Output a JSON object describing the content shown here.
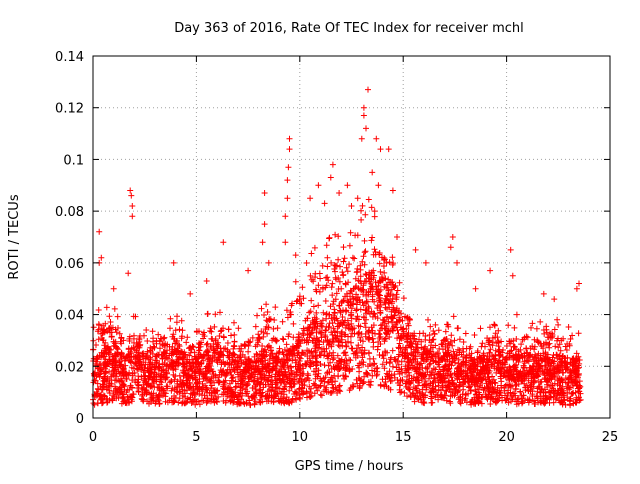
{
  "chart_data": {
    "type": "scatter",
    "title": "Day 363 of 2016, Rate Of TEC Index for receiver mchl",
    "xlabel": "GPS time / hours",
    "ylabel": "ROTI / TECUs",
    "xlim": [
      0,
      25
    ],
    "ylim": [
      0,
      0.14
    ],
    "x_ticks": [
      0,
      5,
      10,
      15,
      20,
      25
    ],
    "y_ticks": [
      0,
      0.02,
      0.04,
      0.06,
      0.08,
      0.1,
      0.12,
      0.14
    ],
    "x_tick_labels": [
      "0",
      "5",
      "10",
      "15",
      "20",
      "25"
    ],
    "y_tick_labels": [
      "0",
      "0.02",
      "0.04",
      "0.06",
      "0.08",
      "0.1",
      "0.12",
      "0.14"
    ],
    "grid": true,
    "marker": "+",
    "marker_color": "#ff0000",
    "data_x_range": [
      0,
      23.6
    ],
    "series": [
      {
        "name": "ROTI",
        "envelope": {
          "hours": [
            0,
            0.5,
            1,
            1.5,
            2,
            2.5,
            3,
            3.5,
            4,
            4.5,
            5,
            5.5,
            6,
            6.5,
            7,
            7.5,
            8,
            8.5,
            9,
            9.5,
            10,
            10.5,
            11,
            11.5,
            12,
            12.5,
            13,
            13.5,
            14,
            14.5,
            15,
            15.5,
            16,
            16.5,
            17,
            17.5,
            18,
            18.5,
            19,
            19.5,
            20,
            20.5,
            21,
            21.5,
            22,
            22.5,
            23,
            23.5
          ],
          "median": [
            0.014,
            0.016,
            0.018,
            0.015,
            0.018,
            0.016,
            0.015,
            0.016,
            0.017,
            0.015,
            0.014,
            0.016,
            0.017,
            0.016,
            0.015,
            0.014,
            0.015,
            0.017,
            0.016,
            0.016,
            0.019,
            0.022,
            0.024,
            0.025,
            0.028,
            0.03,
            0.033,
            0.036,
            0.034,
            0.03,
            0.024,
            0.018,
            0.016,
            0.016,
            0.015,
            0.016,
            0.015,
            0.014,
            0.015,
            0.016,
            0.015,
            0.015,
            0.016,
            0.015,
            0.016,
            0.015,
            0.014,
            0.014
          ],
          "upper": [
            0.035,
            0.038,
            0.036,
            0.03,
            0.034,
            0.03,
            0.03,
            0.032,
            0.035,
            0.03,
            0.028,
            0.034,
            0.036,
            0.034,
            0.03,
            0.028,
            0.034,
            0.04,
            0.036,
            0.04,
            0.05,
            0.055,
            0.058,
            0.06,
            0.06,
            0.062,
            0.07,
            0.072,
            0.065,
            0.06,
            0.045,
            0.035,
            0.032,
            0.034,
            0.03,
            0.034,
            0.03,
            0.028,
            0.03,
            0.032,
            0.03,
            0.03,
            0.032,
            0.03,
            0.034,
            0.032,
            0.03,
            0.03
          ]
        },
        "notable_points": [
          {
            "x": 0.3,
            "y": 0.072
          },
          {
            "x": 0.3,
            "y": 0.06
          },
          {
            "x": 0.4,
            "y": 0.062
          },
          {
            "x": 1.0,
            "y": 0.05
          },
          {
            "x": 1.8,
            "y": 0.088
          },
          {
            "x": 1.85,
            "y": 0.086
          },
          {
            "x": 1.9,
            "y": 0.082
          },
          {
            "x": 1.9,
            "y": 0.078
          },
          {
            "x": 1.7,
            "y": 0.056
          },
          {
            "x": 3.9,
            "y": 0.06
          },
          {
            "x": 4.7,
            "y": 0.048
          },
          {
            "x": 5.5,
            "y": 0.053
          },
          {
            "x": 6.3,
            "y": 0.068
          },
          {
            "x": 7.5,
            "y": 0.057
          },
          {
            "x": 8.3,
            "y": 0.087
          },
          {
            "x": 8.3,
            "y": 0.075
          },
          {
            "x": 8.2,
            "y": 0.068
          },
          {
            "x": 8.5,
            "y": 0.06
          },
          {
            "x": 9.5,
            "y": 0.108
          },
          {
            "x": 9.5,
            "y": 0.104
          },
          {
            "x": 9.45,
            "y": 0.097
          },
          {
            "x": 9.4,
            "y": 0.092
          },
          {
            "x": 9.4,
            "y": 0.085
          },
          {
            "x": 9.3,
            "y": 0.078
          },
          {
            "x": 9.3,
            "y": 0.068
          },
          {
            "x": 9.8,
            "y": 0.063
          },
          {
            "x": 10.5,
            "y": 0.085
          },
          {
            "x": 10.9,
            "y": 0.09
          },
          {
            "x": 11.2,
            "y": 0.083
          },
          {
            "x": 11.6,
            "y": 0.098
          },
          {
            "x": 11.5,
            "y": 0.093
          },
          {
            "x": 11.9,
            "y": 0.087
          },
          {
            "x": 12.3,
            "y": 0.09
          },
          {
            "x": 12.5,
            "y": 0.082
          },
          {
            "x": 12.8,
            "y": 0.085
          },
          {
            "x": 13.1,
            "y": 0.12
          },
          {
            "x": 13.1,
            "y": 0.117
          },
          {
            "x": 13.2,
            "y": 0.112
          },
          {
            "x": 13.0,
            "y": 0.108
          },
          {
            "x": 13.3,
            "y": 0.127
          },
          {
            "x": 13.5,
            "y": 0.095
          },
          {
            "x": 13.7,
            "y": 0.108
          },
          {
            "x": 13.9,
            "y": 0.104
          },
          {
            "x": 14.3,
            "y": 0.104
          },
          {
            "x": 13.8,
            "y": 0.09
          },
          {
            "x": 14.5,
            "y": 0.088
          },
          {
            "x": 14.7,
            "y": 0.07
          },
          {
            "x": 15.6,
            "y": 0.065
          },
          {
            "x": 16.1,
            "y": 0.06
          },
          {
            "x": 17.4,
            "y": 0.07
          },
          {
            "x": 17.3,
            "y": 0.066
          },
          {
            "x": 17.6,
            "y": 0.06
          },
          {
            "x": 18.5,
            "y": 0.05
          },
          {
            "x": 19.2,
            "y": 0.057
          },
          {
            "x": 20.2,
            "y": 0.065
          },
          {
            "x": 20.3,
            "y": 0.055
          },
          {
            "x": 20.5,
            "y": 0.04
          },
          {
            "x": 21.8,
            "y": 0.048
          },
          {
            "x": 22.3,
            "y": 0.046
          },
          {
            "x": 23.5,
            "y": 0.052
          },
          {
            "x": 23.4,
            "y": 0.05
          }
        ]
      }
    ]
  }
}
